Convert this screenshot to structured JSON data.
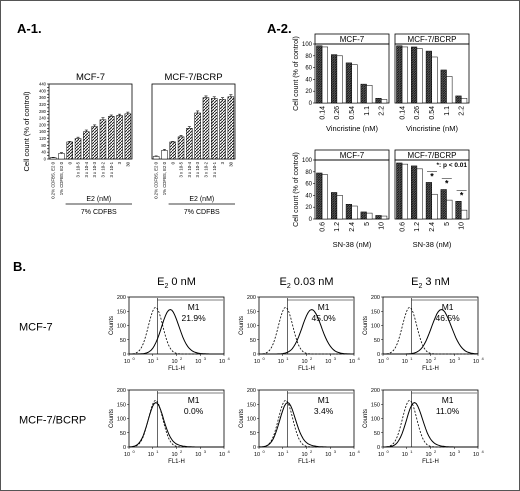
{
  "panel_labels": {
    "a1": "A-1.",
    "a2": "A-2.",
    "b": "B."
  },
  "chart_data": [
    {
      "id": "a1-mcf7",
      "type": "bar",
      "title": "MCF-7",
      "ylabel": "Cell count (% of control)",
      "xlabel": "E2 (nM)",
      "group_label": "7% CDFBS",
      "yticks": [
        "0",
        "20",
        "40",
        "60",
        "80",
        "100",
        "120",
        "140",
        "160",
        "180",
        "200",
        "220",
        "240",
        "260",
        "280",
        "300",
        "320",
        "340",
        "360",
        "380",
        "400",
        "420",
        "440"
      ],
      "ylim": [
        0,
        440
      ],
      "categories": [
        "0.2% CDFBS, E2 0",
        "1% CDFBS, E2 0",
        "0",
        "3 x 10-5",
        "3 x 10-4",
        "3 x 10-3",
        "3 x 10-2",
        "3 x 10-1",
        "3",
        "30"
      ],
      "values": [
        8,
        32,
        100,
        120,
        160,
        190,
        230,
        250,
        255,
        265
      ],
      "errors": [
        2,
        5,
        3,
        8,
        10,
        10,
        12,
        8,
        8,
        10
      ]
    },
    {
      "id": "a1-bcrp",
      "type": "bar",
      "title": "MCF-7/BCRP",
      "xlabel": "E2 (nM)",
      "group_label": "7% CDFBS",
      "ylim": [
        0,
        440
      ],
      "categories": [
        "0.2% CDFBS, E2 0",
        "1% CDFBS, E2 0",
        "0",
        "3 x 10-5",
        "3 x 10-4",
        "3 x 10-3",
        "3 x 10-2",
        "3 x 10-1",
        "3",
        "30"
      ],
      "values": [
        15,
        50,
        100,
        130,
        180,
        270,
        360,
        355,
        350,
        365
      ],
      "errors": [
        3,
        6,
        3,
        8,
        10,
        12,
        10,
        10,
        10,
        12
      ]
    },
    {
      "id": "a2-vcr-mcf7",
      "type": "bar",
      "title": "MCF-7",
      "ylabel": "Cell count (% of control)",
      "xlabel": "Vincristine (nM)",
      "yticks": [
        "0",
        "20",
        "40",
        "60",
        "80",
        "100"
      ],
      "ylim": [
        0,
        100
      ],
      "categories": [
        "0.14",
        "0.26",
        "0.54",
        "1.1",
        "2.2"
      ],
      "series": [
        {
          "values": [
            97,
            82,
            68,
            32,
            8
          ]
        },
        {
          "values": [
            95,
            80,
            65,
            30,
            6
          ]
        }
      ]
    },
    {
      "id": "a2-vcr-bcrp",
      "type": "bar",
      "title": "MCF-7/BCRP",
      "xlabel": "Vincristine (nM)",
      "ylim": [
        0,
        100
      ],
      "categories": [
        "0.14",
        "0.26",
        "0.54",
        "1.1",
        "2.2"
      ],
      "series": [
        {
          "values": [
            97,
            95,
            88,
            56,
            12
          ]
        },
        {
          "values": [
            95,
            92,
            78,
            45,
            8
          ]
        }
      ]
    },
    {
      "id": "a2-sn38-mcf7",
      "type": "bar",
      "title": "MCF-7",
      "ylabel": "Cell count (% of control)",
      "xlabel": "SN-38 (nM)",
      "yticks": [
        "0",
        "20",
        "40",
        "60",
        "80",
        "100"
      ],
      "ylim": [
        0,
        100
      ],
      "categories": [
        "0.6",
        "1.2",
        "2.4",
        "5",
        "10"
      ],
      "series": [
        {
          "values": [
            78,
            45,
            25,
            12,
            6
          ]
        },
        {
          "values": [
            75,
            40,
            22,
            10,
            5
          ]
        }
      ]
    },
    {
      "id": "a2-sn38-bcrp",
      "type": "bar",
      "title": "MCF-7/BCRP",
      "xlabel": "SN-38 (nM)",
      "annotation": "*: p < 0.01",
      "star": "*",
      "ylim": [
        0,
        100
      ],
      "categories": [
        "0.6",
        "1.2",
        "2.4",
        "5",
        "10"
      ],
      "series": [
        {
          "values": [
            95,
            90,
            62,
            50,
            30
          ]
        },
        {
          "values": [
            93,
            85,
            42,
            32,
            15
          ]
        }
      ]
    }
  ],
  "flow": {
    "col_labels": [
      {
        "prefix": "E",
        "sub": "2",
        "value": " 0 nM"
      },
      {
        "prefix": "E",
        "sub": "2",
        "value": " 0.03 nM"
      },
      {
        "prefix": "E",
        "sub": "2",
        "value": " 3 nM"
      }
    ],
    "row_labels": [
      "MCF-7",
      "MCF-7/BCRP"
    ],
    "ylabel": "Counts",
    "xlabel": "FL1-H",
    "yticks": [
      "0",
      "50",
      "100",
      "150",
      "200"
    ],
    "xticks": [
      "10",
      "10",
      "10",
      "10",
      "10"
    ],
    "xtick_exps": [
      "0",
      "1",
      "2",
      "3",
      "4"
    ],
    "gate": "M1",
    "panels": [
      {
        "pct": "21.9%",
        "shift": 0.25
      },
      {
        "pct": "45.0%",
        "shift": 0.45
      },
      {
        "pct": "46.5%",
        "shift": 0.55
      },
      {
        "pct": "0.0%",
        "shift": 0.0
      },
      {
        "pct": "3.4%",
        "shift": 0.03
      },
      {
        "pct": "11.0%",
        "shift": 0.08
      }
    ]
  }
}
